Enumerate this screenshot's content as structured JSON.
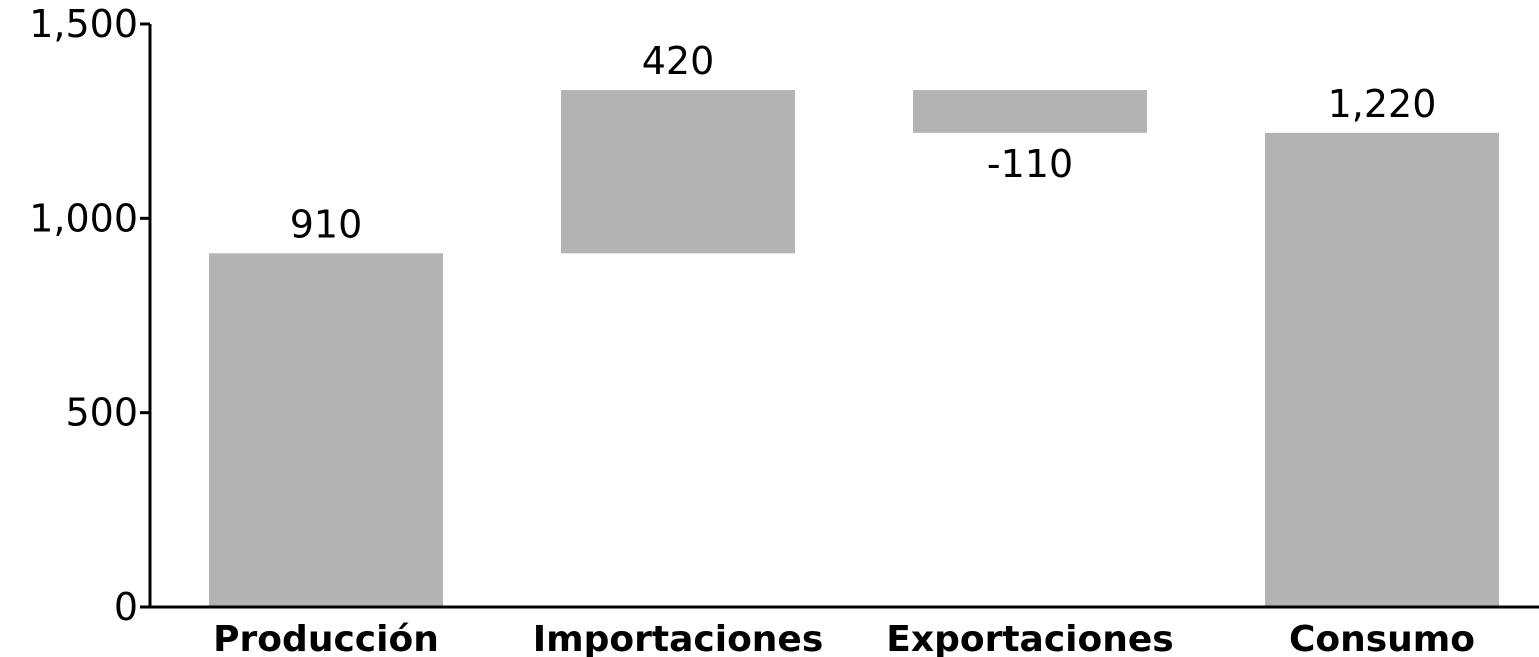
{
  "chart_data": {
    "type": "bar",
    "subtype": "waterfall",
    "categories": [
      "Producción",
      "Importaciones",
      "Exportaciones",
      "Consumo"
    ],
    "steps": [
      {
        "category": "Producción",
        "kind": "total",
        "value": 910,
        "label": "910"
      },
      {
        "category": "Importaciones",
        "kind": "delta",
        "value": 420,
        "label": "420"
      },
      {
        "category": "Exportaciones",
        "kind": "delta",
        "value": -110,
        "label": "-110"
      },
      {
        "category": "Consumo",
        "kind": "total",
        "value": 1220,
        "label": "1,220"
      }
    ],
    "ylim": [
      0,
      1500
    ],
    "yticks": [
      {
        "value": 0,
        "label": "0"
      },
      {
        "value": 500,
        "label": "500"
      },
      {
        "value": 1000,
        "label": "1,000"
      },
      {
        "value": 1500,
        "label": "1,500"
      }
    ],
    "grid": false,
    "bar_color": "#b3b3b3"
  }
}
